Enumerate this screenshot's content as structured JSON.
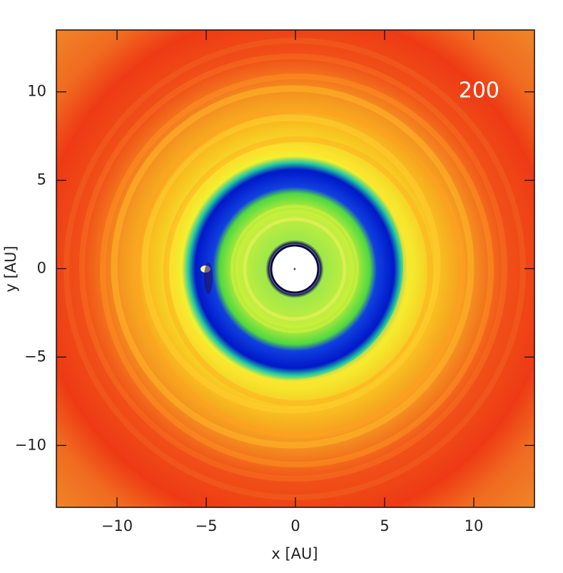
{
  "chart_data": {
    "type": "image",
    "annotation": "200",
    "x_label": "x [AU]",
    "y_label": "y [AU]",
    "xlim": [
      -13.4,
      13.4
    ],
    "ylim": [
      -13.5,
      13.5
    ],
    "xticks": [
      {
        "value": -10,
        "label": "−10"
      },
      {
        "value": -5,
        "label": "−5"
      },
      0,
      5,
      10
    ],
    "yticks": [
      {
        "value": -10,
        "label": "−10"
      },
      {
        "value": -5,
        "label": "−5"
      },
      0,
      5,
      10
    ]
  }
}
